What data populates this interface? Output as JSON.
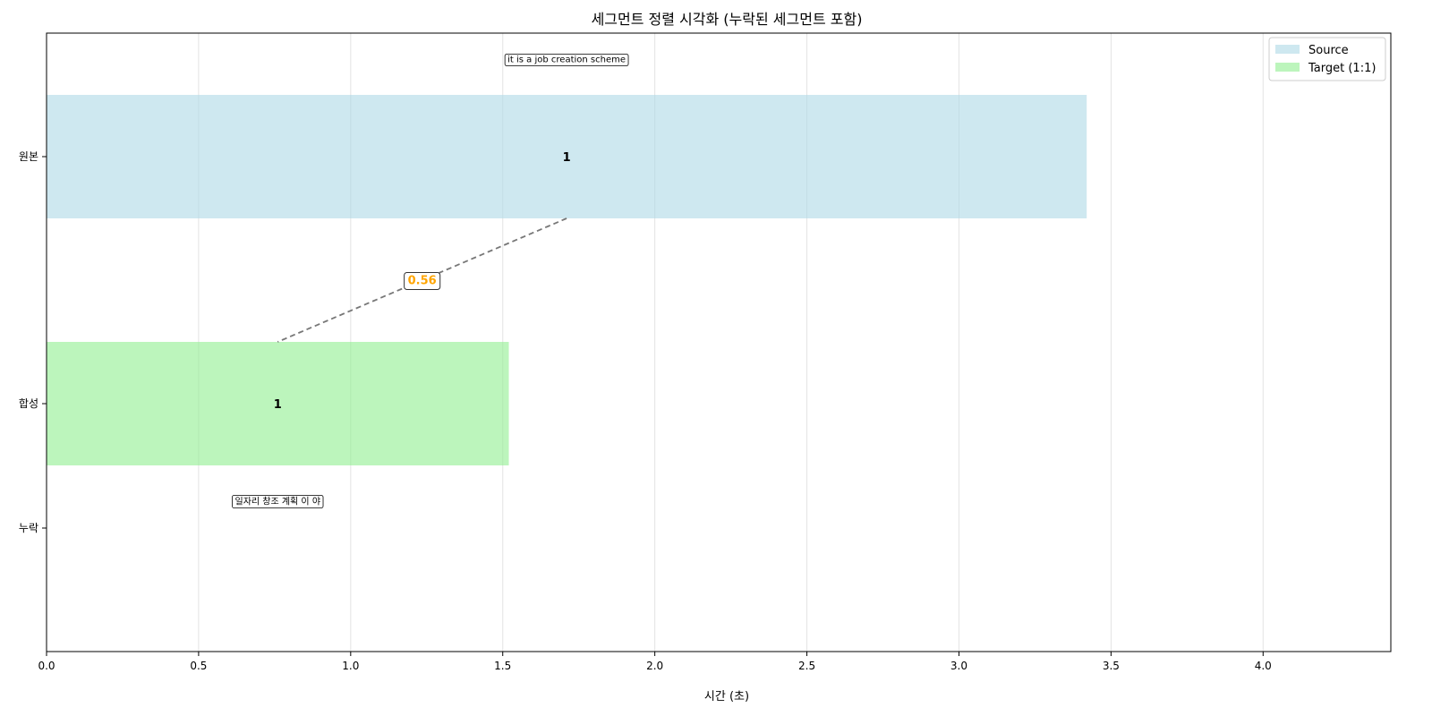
{
  "chart_data": {
    "type": "bar",
    "orientation": "horizontal",
    "title": "세그먼트 정렬 시각화 (누락된 세그먼트 포함)",
    "xlabel": "시간 (초)",
    "ylabel": "",
    "xlim": [
      0,
      4.42
    ],
    "xticks": [
      "0.0",
      "0.5",
      "1.0",
      "1.5",
      "2.0",
      "2.5",
      "3.0",
      "3.5",
      "4.0"
    ],
    "categories": [
      "원본",
      "합성",
      "누락"
    ],
    "grid": "x",
    "legend_position": "top-right",
    "series": [
      {
        "name": "Source",
        "color": "#add8e6",
        "category": "원본",
        "segments": [
          {
            "start": 0.0,
            "end": 3.42,
            "label": "1",
            "text": "it is a job creation scheme"
          }
        ]
      },
      {
        "name": "Target (1:1)",
        "color": "#90ee90",
        "category": "합성",
        "segments": [
          {
            "start": 0.0,
            "end": 1.52,
            "label": "1",
            "text": "일자리 창조 계획 이 야"
          }
        ]
      }
    ],
    "alignments": [
      {
        "from_x": 1.71,
        "to_x": 0.76,
        "score": "0.56",
        "score_color": "#ffa500"
      }
    ]
  }
}
